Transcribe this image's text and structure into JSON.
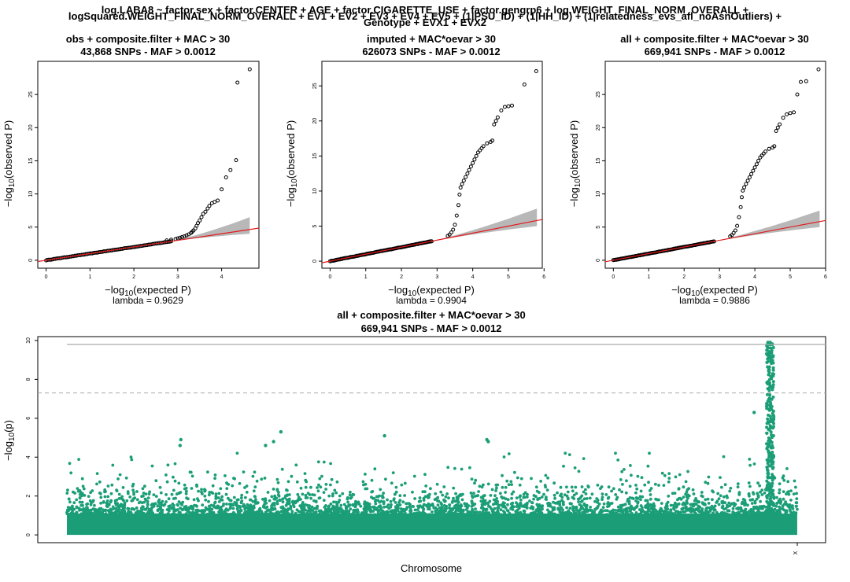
{
  "suptitle": [
    "log.LABA8 ~ factor.sex + factor.CENTER + AGE + factor.CIGARETTE_USE + factor.gengrp6 + log.WEIGHT_FINAL_NORM_OVERALL +",
    "logSquared.WEIGHT_FINAL_NORM_OVERALL + EV1 + EV2 + EV3 + EV4 + EV5 + (1|PSU_ID) + (1|HH_ID) + (1|relatedness_evs_afl_noAsnOutliers) +",
    "Genotype + EVX1 + EVX2"
  ],
  "chart_data": [
    {
      "type": "scatter",
      "kind": "qq",
      "title_line1": "obs + composite.filter + MAC > 30",
      "title_line2": "43,868 SNPs - MAF > 0.0012",
      "xlabel_prefix": "−log",
      "xlabel_suffix": "(expected P)",
      "ylabel_prefix": "−log",
      "ylabel_suffix": "(observed P)",
      "subscript": "10",
      "lambda_label": "lambda = 0.9629",
      "lambda": 0.9629,
      "xlim": [
        -0.19,
        4.85
      ],
      "ylim": [
        -1.2,
        30.0
      ],
      "xticks": [
        "0",
        "1",
        "2",
        "3",
        "4"
      ],
      "yticks": [
        "0",
        "5",
        "10",
        "15",
        "20",
        "25"
      ],
      "max_expected": 4.64,
      "ci_upper_at_max": 6.5,
      "ci_lower_at_max": 4.0,
      "inflation_points": [
        [
          2.75,
          3.0
        ],
        [
          2.85,
          3.1
        ],
        [
          2.95,
          3.2
        ],
        [
          3.0,
          3.3
        ],
        [
          3.05,
          3.4
        ],
        [
          3.1,
          3.5
        ],
        [
          3.15,
          3.6
        ],
        [
          3.2,
          3.75
        ],
        [
          3.25,
          3.9
        ],
        [
          3.3,
          4.1
        ],
        [
          3.33,
          4.3
        ],
        [
          3.36,
          4.5
        ],
        [
          3.4,
          4.8
        ],
        [
          3.43,
          5.2
        ],
        [
          3.46,
          5.6
        ],
        [
          3.5,
          6.0
        ],
        [
          3.54,
          6.5
        ],
        [
          3.58,
          7.0
        ],
        [
          3.63,
          7.3
        ],
        [
          3.68,
          7.8
        ],
        [
          3.72,
          8.2
        ],
        [
          3.78,
          8.6
        ],
        [
          3.84,
          8.8
        ],
        [
          3.91,
          9.0
        ],
        [
          4.0,
          10.7
        ],
        [
          4.1,
          12.5
        ],
        [
          4.2,
          13.6
        ],
        [
          4.33,
          15.1
        ],
        [
          4.36,
          26.8
        ],
        [
          4.64,
          28.8
        ]
      ]
    },
    {
      "type": "scatter",
      "kind": "qq",
      "title_line1": "imputed + MAC*oevar > 30",
      "title_line2": "626073 SNPs - MAF > 0.0012",
      "xlabel_prefix": "−log",
      "xlabel_suffix": "(expected P)",
      "ylabel_prefix": "−log",
      "ylabel_suffix": "(observed P)",
      "subscript": "10",
      "lambda_label": "lambda = 0.9904",
      "lambda": 0.9904,
      "xlim": [
        -0.23,
        5.95
      ],
      "ylim": [
        -1.0,
        28.5
      ],
      "xticks": [
        "0",
        "1",
        "2",
        "3",
        "4",
        "5",
        "6"
      ],
      "yticks": [
        "0",
        "5",
        "10",
        "15",
        "20",
        "25"
      ],
      "max_expected": 5.8,
      "ci_upper_at_max": 7.5,
      "ci_lower_at_max": 5.0,
      "inflation_points": [
        [
          3.3,
          3.6
        ],
        [
          3.35,
          3.8
        ],
        [
          3.4,
          4.1
        ],
        [
          3.45,
          4.5
        ],
        [
          3.5,
          5.2
        ],
        [
          3.55,
          6.5
        ],
        [
          3.6,
          8.0
        ],
        [
          3.63,
          9.5
        ],
        [
          3.66,
          10.5
        ],
        [
          3.7,
          11.0
        ],
        [
          3.75,
          11.5
        ],
        [
          3.8,
          12.0
        ],
        [
          3.85,
          12.5
        ],
        [
          3.9,
          13.0
        ],
        [
          3.95,
          13.5
        ],
        [
          4.0,
          14.0
        ],
        [
          4.05,
          14.5
        ],
        [
          4.1,
          15.0
        ],
        [
          4.15,
          15.5
        ],
        [
          4.2,
          15.8
        ],
        [
          4.25,
          16.1
        ],
        [
          4.3,
          16.4
        ],
        [
          4.4,
          16.8
        ],
        [
          4.5,
          17.0
        ],
        [
          4.55,
          17.2
        ],
        [
          4.6,
          19.5
        ],
        [
          4.65,
          20.0
        ],
        [
          4.7,
          20.5
        ],
        [
          4.8,
          21.5
        ],
        [
          4.9,
          22.0
        ],
        [
          5.0,
          22.1
        ],
        [
          5.1,
          22.2
        ],
        [
          5.45,
          25.2
        ],
        [
          5.78,
          27.1
        ]
      ]
    },
    {
      "type": "scatter",
      "kind": "qq",
      "title_line1": "all + composite.filter + MAC*oevar > 30",
      "title_line2": "669,941 SNPs - MAF > 0.0012",
      "xlabel_prefix": "−log",
      "xlabel_suffix": "(expected P)",
      "ylabel_prefix": "−log",
      "ylabel_suffix": "(observed P)",
      "subscript": "10",
      "lambda_label": "lambda = 0.9886",
      "lambda": 0.9886,
      "xlim": [
        -0.23,
        6.0
      ],
      "ylim": [
        -1.2,
        30.0
      ],
      "xticks": [
        "0",
        "1",
        "2",
        "3",
        "4",
        "5",
        "6"
      ],
      "yticks": [
        "0",
        "5",
        "10",
        "15",
        "20",
        "25"
      ],
      "max_expected": 5.83,
      "ci_upper_at_max": 7.5,
      "ci_lower_at_max": 5.0,
      "inflation_points": [
        [
          3.3,
          3.6
        ],
        [
          3.35,
          3.8
        ],
        [
          3.4,
          4.1
        ],
        [
          3.45,
          4.5
        ],
        [
          3.5,
          5.2
        ],
        [
          3.55,
          6.5
        ],
        [
          3.6,
          8.0
        ],
        [
          3.63,
          9.5
        ],
        [
          3.66,
          10.5
        ],
        [
          3.7,
          11.0
        ],
        [
          3.75,
          11.5
        ],
        [
          3.8,
          12.0
        ],
        [
          3.85,
          12.5
        ],
        [
          3.9,
          13.0
        ],
        [
          3.95,
          13.5
        ],
        [
          4.0,
          14.0
        ],
        [
          4.05,
          14.5
        ],
        [
          4.1,
          15.0
        ],
        [
          4.15,
          15.5
        ],
        [
          4.2,
          15.8
        ],
        [
          4.25,
          16.1
        ],
        [
          4.3,
          16.4
        ],
        [
          4.4,
          16.8
        ],
        [
          4.5,
          17.0
        ],
        [
          4.55,
          17.2
        ],
        [
          4.6,
          19.5
        ],
        [
          4.65,
          20.0
        ],
        [
          4.7,
          20.5
        ],
        [
          4.8,
          21.5
        ],
        [
          4.9,
          22.0
        ],
        [
          5.0,
          22.2
        ],
        [
          5.1,
          22.3
        ],
        [
          5.2,
          25.0
        ],
        [
          5.3,
          26.9
        ],
        [
          5.45,
          27.0
        ],
        [
          5.8,
          28.8
        ]
      ]
    },
    {
      "type": "scatter",
      "kind": "manhattan",
      "title_line1": "all + composite.filter + MAC*oevar > 30",
      "title_line2": "669,941 SNPs - MAF > 0.0012",
      "xlabel": "Chromosome",
      "ylabel_prefix": "−log",
      "ylabel_suffix": "(p)",
      "subscript": "10",
      "chromosome_labels": [
        "X"
      ],
      "point_color": "#1b9e77",
      "xlim": [
        0,
        100
      ],
      "ylim": [
        -0.4,
        10.2
      ],
      "yticks": [
        "0",
        "2",
        "4",
        "6",
        "8",
        "10"
      ],
      "suggestive_line": 9.8,
      "significance_line": 7.3,
      "notable_peaks": [
        [
          15.5,
          4.6
        ],
        [
          15.6,
          4.9
        ],
        [
          27.2,
          4.6
        ],
        [
          28.3,
          4.8
        ],
        [
          29.3,
          5.3
        ],
        [
          43.5,
          5.1
        ],
        [
          57.5,
          4.9
        ],
        [
          57.7,
          4.8
        ],
        [
          94.1,
          6.3
        ],
        [
          96.0,
          9.9
        ],
        [
          96.3,
          9.9
        ],
        [
          96.6,
          9.8
        ]
      ]
    }
  ]
}
